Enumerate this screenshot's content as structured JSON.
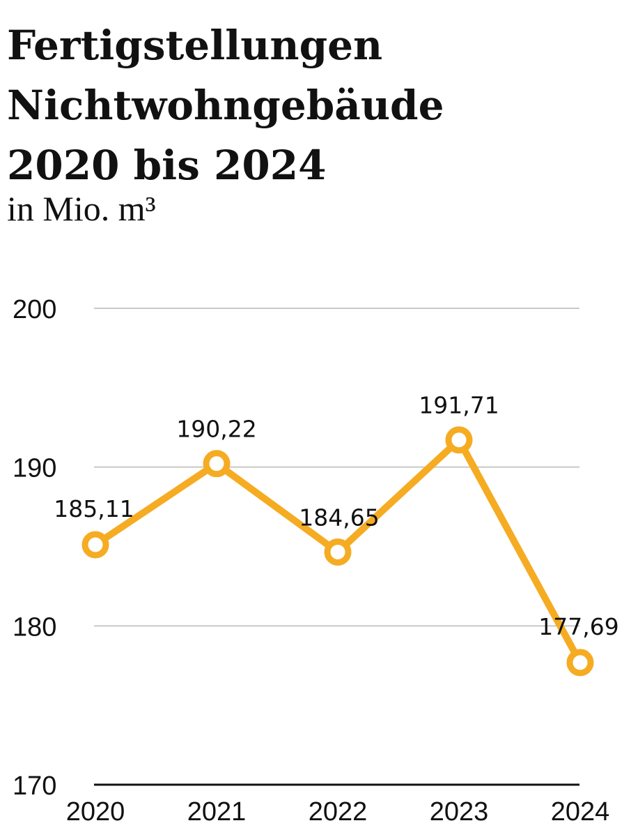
{
  "header": {
    "title_lines": [
      "Fertigstellungen",
      "Nichtwohngebäude",
      "2020 bis 2024"
    ],
    "subtitle": "in Mio. m³"
  },
  "chart_data": {
    "type": "line",
    "title": "Fertigstellungen Nichtwohngebäude 2020 bis 2024",
    "subtitle": "in Mio. m³",
    "x": [
      "2020",
      "2021",
      "2022",
      "2023",
      "2024"
    ],
    "series": [
      {
        "values": [
          185.11,
          190.22,
          184.65,
          191.71,
          177.69
        ],
        "color": "#F5AC22"
      }
    ],
    "data_labels": [
      "185,11",
      "190,22",
      "184,65",
      "191,71",
      "177,69"
    ],
    "ylim": [
      170,
      200
    ],
    "yticks": [
      170,
      180,
      190,
      200
    ],
    "ytick_labels": [
      "170",
      "180",
      "190",
      "200"
    ],
    "grid": true,
    "colors": {
      "line": "#F5AC22",
      "grid": "#c8c8c8",
      "axis": "#111111"
    }
  }
}
